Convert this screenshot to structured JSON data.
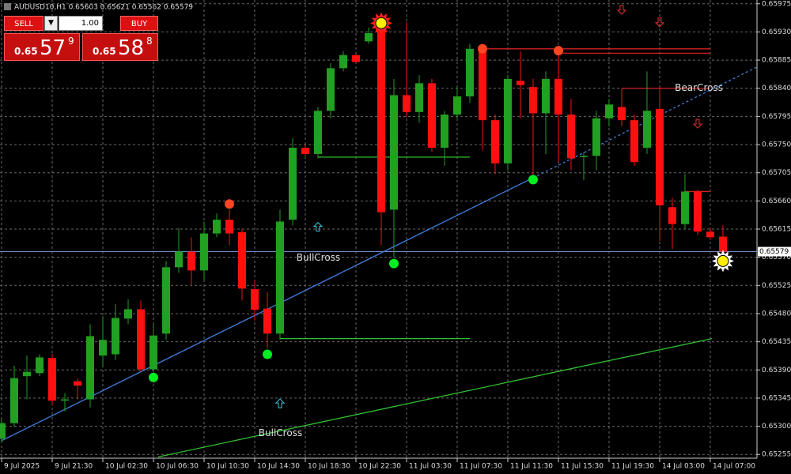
{
  "chart_data": {
    "type": "candlestick",
    "title": "AUDUSD10,H1  0.65603 0.65621 0.65562 0.65579",
    "open": [
      0.6528,
      0.65305,
      0.6538,
      0.65385,
      0.65409,
      0.65341,
      0.65372,
      0.65343,
      0.65413,
      0.65415,
      0.65472,
      0.65487,
      0.65391,
      0.65448,
      0.65554,
      0.65579,
      0.65549,
      0.65608,
      0.6563,
      0.6561,
      0.65519,
      0.65488,
      0.65448,
      0.6563,
      0.65745,
      0.65735,
      0.65804,
      0.65872,
      0.65893,
      0.65915,
      0.65943,
      0.65646,
      0.65829,
      0.65802,
      0.65848,
      0.65745,
      0.65798,
      0.65827,
      0.65905,
      0.65789,
      0.6572,
      0.65852,
      0.65842,
      0.658,
      0.65855,
      0.65798,
      0.6573,
      0.65732,
      0.65792,
      0.6581,
      0.65789,
      0.65745,
      0.65807,
      0.6565,
      0.65623,
      0.65675,
      0.65611,
      0.65603
    ],
    "high": [
      0.65312,
      0.65397,
      0.65413,
      0.65415,
      0.65416,
      0.65353,
      0.65377,
      0.65463,
      0.65476,
      0.65495,
      0.65503,
      0.65501,
      0.65463,
      0.65564,
      0.65617,
      0.65602,
      0.65627,
      0.6564,
      0.65646,
      0.65615,
      0.65533,
      0.65514,
      0.65646,
      0.6576,
      0.6575,
      0.6581,
      0.6588,
      0.65899,
      0.65895,
      0.65937,
      0.65956,
      0.65855,
      0.65946,
      0.65861,
      0.65855,
      0.65804,
      0.65842,
      0.65911,
      0.65911,
      0.65798,
      0.65861,
      0.65899,
      0.65855,
      0.65867,
      0.65893,
      0.65823,
      0.65738,
      0.65804,
      0.65823,
      0.65839,
      0.65798,
      0.65867,
      0.65842,
      0.65665,
      0.65703,
      0.65678,
      0.65617,
      0.65621
    ],
    "low": [
      0.65274,
      0.65299,
      0.65343,
      0.6538,
      0.65334,
      0.65324,
      0.65343,
      0.6533,
      0.65394,
      0.65406,
      0.65463,
      0.65387,
      0.65387,
      0.65438,
      0.65545,
      0.65526,
      0.65533,
      0.65602,
      0.65589,
      0.65501,
      0.65469,
      0.65425,
      0.65438,
      0.65621,
      0.65731,
      0.65728,
      0.65792,
      0.65867,
      0.6588,
      0.65911,
      0.65589,
      0.6557,
      0.65794,
      0.65785,
      0.65738,
      0.65716,
      0.65792,
      0.65817,
      0.65741,
      0.65703,
      0.65709,
      0.65792,
      0.65697,
      0.65735,
      0.65722,
      0.65709,
      0.65693,
      0.65709,
      0.65779,
      0.65779,
      0.65716,
      0.65735,
      0.65596,
      0.65583,
      0.65615,
      0.65606,
      0.65598,
      0.65562
    ],
    "close": [
      0.65305,
      0.65377,
      0.65387,
      0.6541,
      0.65341,
      0.65343,
      0.65365,
      0.65444,
      0.65438,
      0.65473,
      0.65487,
      0.65391,
      0.65445,
      0.65554,
      0.65579,
      0.65549,
      0.65608,
      0.6563,
      0.65608,
      0.6552,
      0.65486,
      0.65448,
      0.65627,
      0.65745,
      0.65735,
      0.65804,
      0.65872,
      0.65893,
      0.65882,
      0.65928,
      0.65642,
      0.65829,
      0.65802,
      0.65848,
      0.65745,
      0.65798,
      0.65827,
      0.65903,
      0.65789,
      0.6572,
      0.65855,
      0.65845,
      0.658,
      0.65855,
      0.65798,
      0.65728,
      0.65732,
      0.65792,
      0.65814,
      0.65789,
      0.65722,
      0.65804,
      0.65653,
      0.65623,
      0.65675,
      0.65611,
      0.65602,
      0.65579
    ],
    "up_color": "#22a022",
    "down_color": "#ff1010",
    "ylim": [
      0.65249,
      0.65981
    ],
    "yticks": [
      0.65975,
      {
        "value": 0.6593,
        "label": "0.65930"
      },
      0.65885,
      {
        "value": 0.6584,
        "label": "0.65840"
      },
      0.65795,
      {
        "value": 0.6575,
        "label": "0.65750"
      },
      0.65705,
      {
        "value": 0.6566,
        "label": "0.65660"
      },
      0.65615,
      {
        "value": 0.6557,
        "label": "0.65570"
      },
      0.65525,
      {
        "value": 0.6548,
        "label": "0.65480"
      },
      0.65435,
      {
        "value": 0.6539,
        "label": "0.65390"
      },
      0.65345,
      {
        "value": 0.653,
        "label": "0.65300"
      },
      0.65255
    ],
    "xlim": [
      -0.125,
      59.69
    ],
    "xticks": [
      {
        "value": 0,
        "label": "9 Jul 2025"
      },
      {
        "value": 4,
        "label": "9 Jul 21:30"
      },
      {
        "value": 8,
        "label": "10 Jul 02:30"
      },
      {
        "value": 12,
        "label": "10 Jul 06:30"
      },
      {
        "value": 16,
        "label": "10 Jul 10:30"
      },
      {
        "value": 20,
        "label": "10 Jul 14:30"
      },
      {
        "value": 24,
        "label": "10 Jul 18:30"
      },
      {
        "value": 28,
        "label": "10 Jul 22:30"
      },
      {
        "value": 32,
        "label": "11 Jul 03:30"
      },
      {
        "value": 36,
        "label": "11 Jul 07:30"
      },
      {
        "value": 40,
        "label": "11 Jul 11:30"
      },
      {
        "value": 44,
        "label": "11 Jul 15:30"
      },
      {
        "value": 48,
        "label": "11 Jul 19:30"
      },
      {
        "value": 52,
        "label": "14 Jul 03:00"
      },
      {
        "value": 56,
        "label": "14 Jul 07:00"
      }
    ],
    "grid": true,
    "bid": {
      "value": 0.65579,
      "color": "#6f8fc8"
    },
    "lines": [
      {
        "x": [
          0,
          42
        ],
        "y": [
          0.65277,
          0.65697
        ],
        "color": "#3f7fdf",
        "dash": false
      },
      {
        "x": [
          42,
          59.69
        ],
        "y": [
          0.65697,
          0.65874
        ],
        "color": "#3f7fdf",
        "dash": true
      },
      {
        "x": [
          12.375,
          56.125
        ],
        "y": [
          0.65251,
          0.6544
        ],
        "color": "#2fbf2f",
        "dash": false
      },
      {
        "x": [
          25,
          37
        ],
        "y": [
          0.6573,
          0.6573
        ],
        "color": "#2fbf2f",
        "dash": false
      },
      {
        "x": [
          22,
          37
        ],
        "y": [
          0.6544,
          0.6544
        ],
        "color": "#2fbf2f",
        "dash": false
      },
      {
        "x": [
          38,
          56
        ],
        "y": [
          0.65903,
          0.65903
        ],
        "color": "#d02020",
        "dash": false
      },
      {
        "x": [
          44,
          56
        ],
        "y": [
          0.65896,
          0.65896
        ],
        "color": "#d02020",
        "dash": false
      },
      {
        "x": [
          49,
          56
        ],
        "y": [
          0.6584,
          0.6584
        ],
        "color": "#d02020",
        "dash": false
      },
      {
        "x": [
          54,
          56
        ],
        "y": [
          0.65675,
          0.65675
        ],
        "color": "#d02020",
        "dash": false
      }
    ],
    "labels": [
      {
        "text": "BullCross",
        "x": 23.3,
        "y": 0.65569,
        "color": "#3cc8e0"
      },
      {
        "text": "BullCross",
        "x": 20.3,
        "y": 0.65289,
        "color": "#3cc8e0"
      },
      {
        "text": "BearCross",
        "x": 53.2,
        "y": 0.6584,
        "color": "#e03030"
      }
    ],
    "markers": [
      {
        "shape": "dot",
        "x": 18,
        "y": 0.65655,
        "color": "#ff4422"
      },
      {
        "shape": "dot",
        "x": 38,
        "y": 0.65903,
        "color": "#ff4422"
      },
      {
        "shape": "dot",
        "x": 44,
        "y": 0.659,
        "color": "#ff4422"
      },
      {
        "shape": "dot",
        "x": 12,
        "y": 0.65378,
        "color": "#00ee22"
      },
      {
        "shape": "dot",
        "x": 21,
        "y": 0.65415,
        "color": "#00ee22"
      },
      {
        "shape": "dot",
        "x": 31,
        "y": 0.6556,
        "color": "#00ee22"
      },
      {
        "shape": "dot",
        "x": 42,
        "y": 0.65694,
        "color": "#00ee22"
      },
      {
        "shape": "arrow-up",
        "x": 25,
        "y": 0.65618,
        "color": "#3cc8e0"
      },
      {
        "shape": "arrow-up",
        "x": 22,
        "y": 0.65336,
        "color": "#3cc8e0"
      },
      {
        "shape": "arrow-down",
        "x": 49,
        "y": 0.65966,
        "color": "#e03030"
      },
      {
        "shape": "arrow-down",
        "x": 52,
        "y": 0.65946,
        "color": "#e03030"
      },
      {
        "shape": "arrow-down",
        "x": 55,
        "y": 0.65784,
        "color": "#e03030"
      },
      {
        "shape": "sun",
        "x": 30,
        "y": 0.65944,
        "color": "#ff2020"
      },
      {
        "shape": "sun",
        "x": 57,
        "y": 0.65564,
        "color": "#ffffff"
      }
    ]
  },
  "trade_panel": {
    "sell": "SELL",
    "lot": "1.00",
    "buy": "BUY",
    "bid_prefix": "0.65",
    "bid_big": "57",
    "bid_small": "9",
    "ask_prefix": "0.65",
    "ask_big": "58",
    "ask_small": "8"
  }
}
